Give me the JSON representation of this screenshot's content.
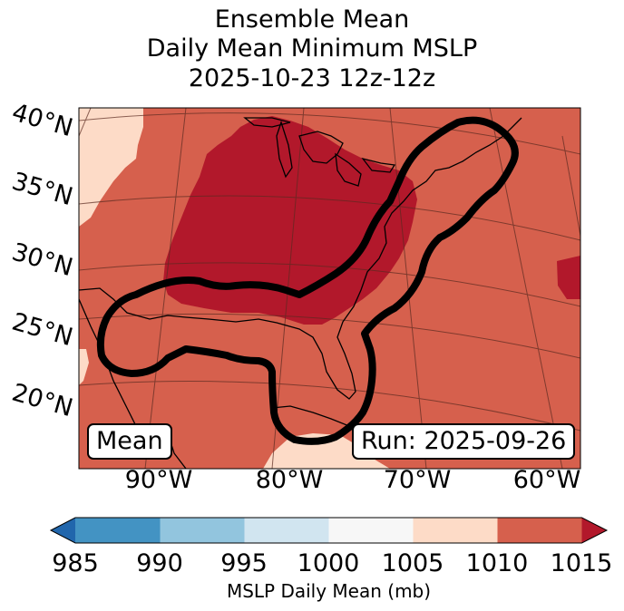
{
  "title": {
    "line1": "Ensemble Mean",
    "line2": "Daily Mean Minimum MSLP",
    "line3": "2025-10-23 12z-12z"
  },
  "map": {
    "lat_labels": [
      "40°N",
      "35°N",
      "30°N",
      "25°N",
      "20°N"
    ],
    "lon_labels": [
      "90°W",
      "80°W",
      "70°W",
      "60°W"
    ],
    "mean_label": "Mean",
    "run_label": "Run: 2025-09-26"
  },
  "colorbar": {
    "label": "MSLP Daily Mean (mb)",
    "ticks": [
      "985",
      "990",
      "995",
      "1000",
      "1005",
      "1010",
      "1015"
    ],
    "bins": [
      {
        "range": "<985",
        "color": "#2166ac"
      },
      {
        "range": "985-990",
        "color": "#4393c3"
      },
      {
        "range": "990-995",
        "color": "#92c5de"
      },
      {
        "range": "995-1000",
        "color": "#d1e5f0"
      },
      {
        "range": "1000-1005",
        "color": "#f7f7f7"
      },
      {
        "range": "1005-1010",
        "color": "#fddbc7"
      },
      {
        "range": "1010-1015",
        "color": "#d6604d"
      },
      {
        "range": ">1015",
        "color": "#b2182b"
      }
    ]
  },
  "colors": {
    "field_high": "#b2182b",
    "field_mid": "#d6604d",
    "field_low": "#fddbc7",
    "contour": "#000000"
  }
}
